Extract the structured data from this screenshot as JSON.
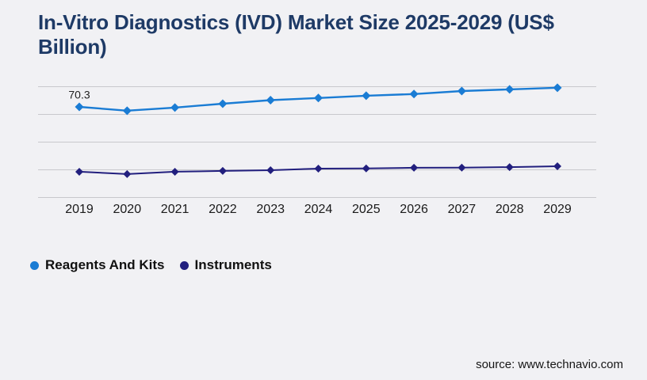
{
  "page": {
    "background_color": "#f1f1f4",
    "source_text": "source: www.technavio.com"
  },
  "chart_data": {
    "type": "line",
    "title": "In-Vitro Diagnostics (IVD) Market Size 2025-2029 (US$ Billion)",
    "title_lines": {
      "line1": "In-Vitro Diagnostics (IVD) Market Size 2025-2029 (US$",
      "line2": "Billion)"
    },
    "categories": [
      "2019",
      "2020",
      "2021",
      "2022",
      "2023",
      "2024",
      "2025",
      "2026",
      "2027",
      "2028",
      "2029"
    ],
    "series": [
      {
        "name": "Reagents And Kits",
        "color": "#1a7cd4",
        "marker": "diamond",
        "values": [
          70.3,
          67.5,
          69.8,
          72.6,
          75.2,
          76.8,
          78.5,
          79.7,
          81.9,
          83.1,
          84.3
        ]
      },
      {
        "name": "Instruments",
        "color": "#221f7e",
        "marker": "diamond",
        "values": [
          22.8,
          21.1,
          22.8,
          23.4,
          23.9,
          25.1,
          25.2,
          25.7,
          25.8,
          26.2,
          26.8
        ]
      }
    ],
    "annotations": [
      {
        "series": 0,
        "index": 0,
        "text": "70.3"
      }
    ],
    "xlabel": "",
    "ylabel": "",
    "y_axis": {
      "labels_visible": false,
      "gridline_count": 5,
      "approx_range": [
        5,
        86
      ]
    },
    "legend_position": "bottom-left",
    "grid": true,
    "gridline_color": "#c8c8cc",
    "text_color": "#1a1a1a",
    "title_color": "#1e3a66"
  }
}
